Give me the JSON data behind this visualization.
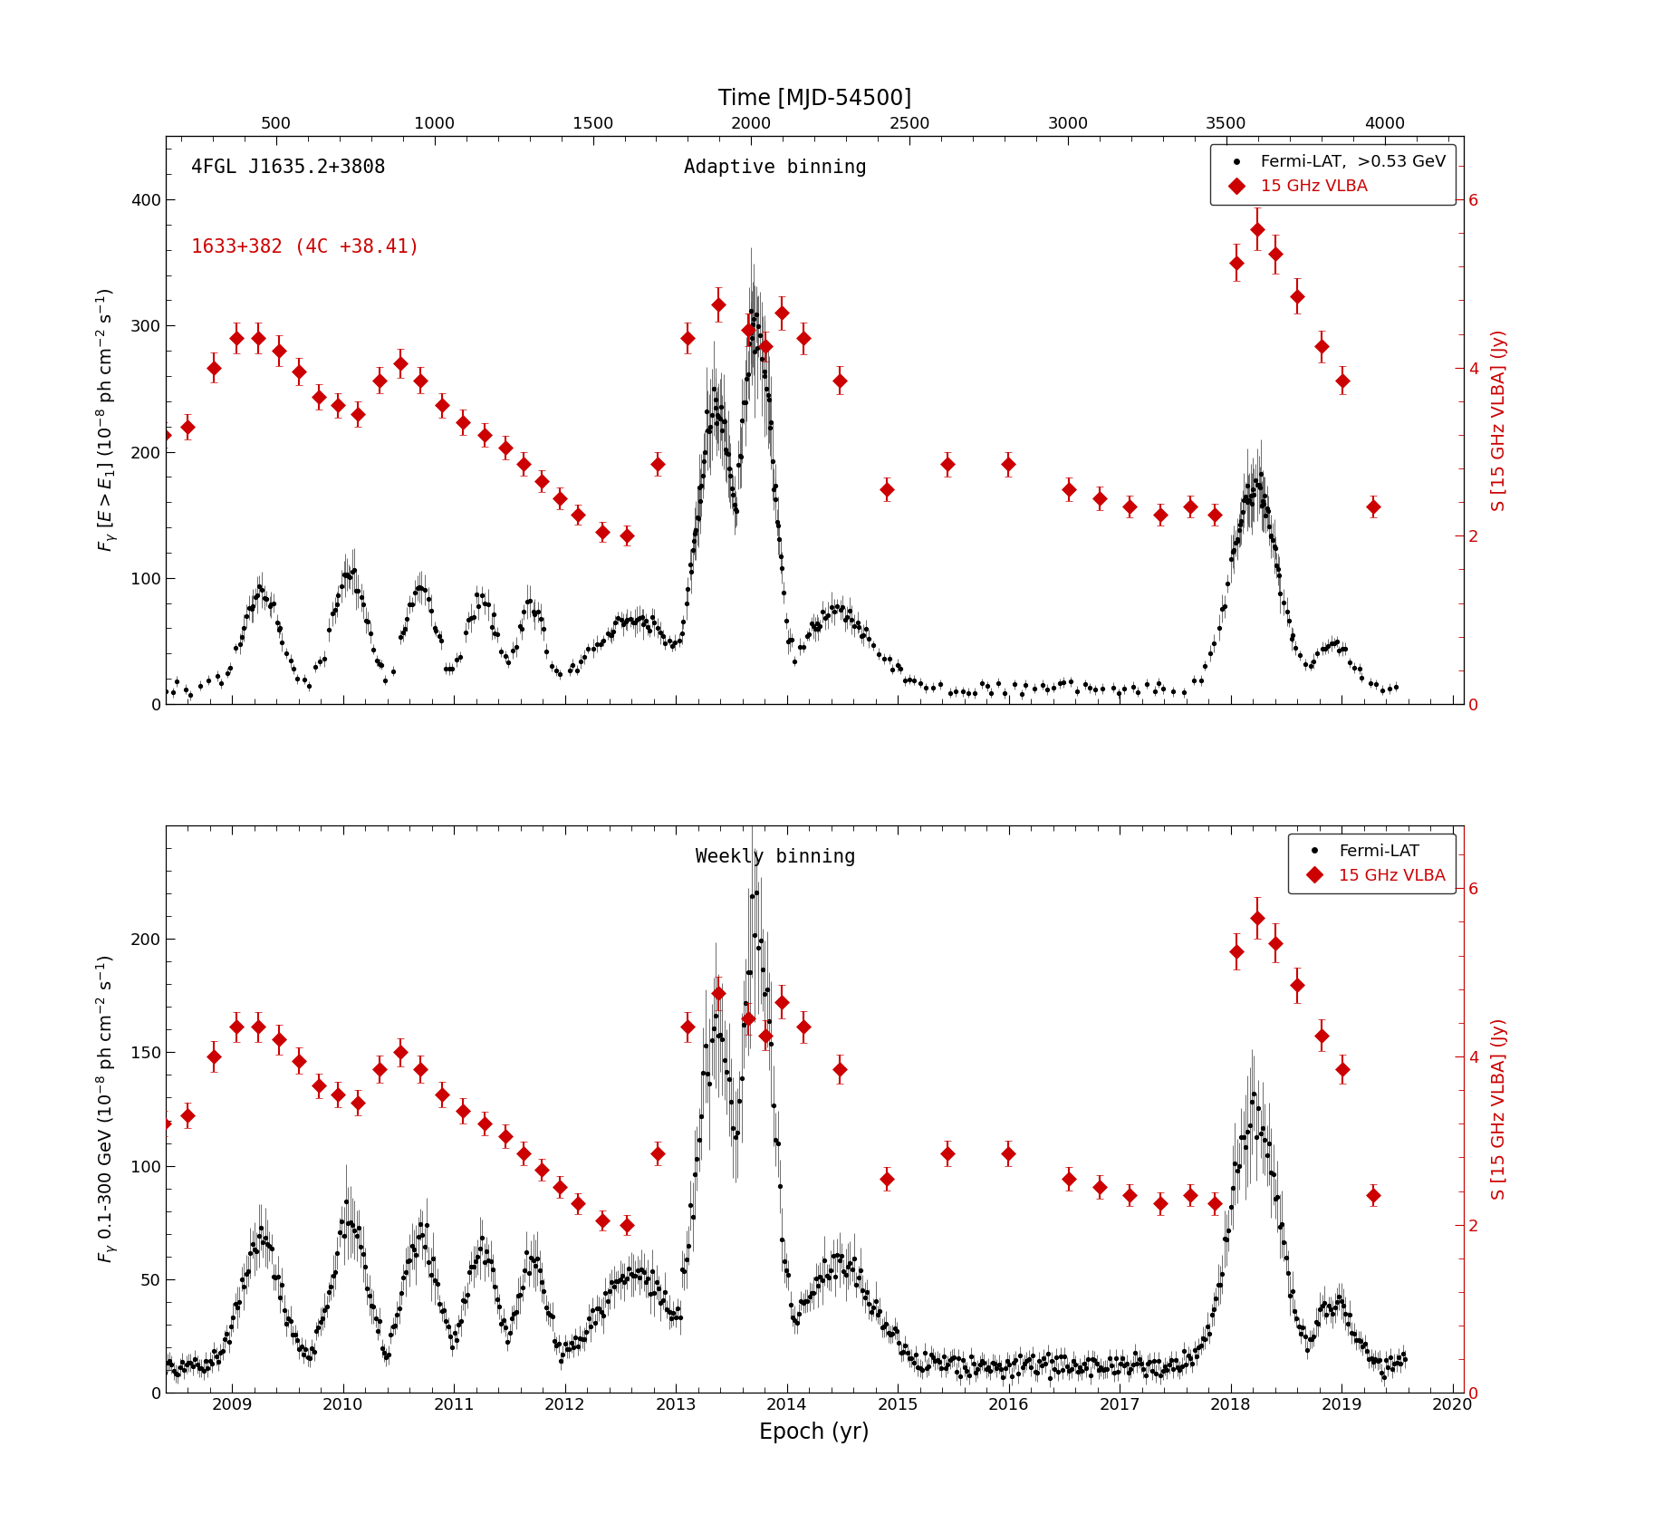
{
  "top_panel": {
    "title_text1": "4FGL J1635.2+3808",
    "title_text2": "1633+382 (4C +38.41)",
    "center_label": "Adaptive binning",
    "legend_entries": [
      "Fermi-LAT,  >0.53 GeV",
      "15 GHz VLBA"
    ],
    "ylabel_left": "$F_{\\gamma}$ $[E>E_1]$ $(10^{-8}$ ph cm$^{-2}$ s$^{-1})$",
    "ylabel_right": "S [15 GHz VLBA] (Jy)",
    "ylim_left": [
      0,
      450
    ],
    "ylim_right": [
      0,
      6.75
    ],
    "yticks_left": [
      0,
      100,
      200,
      300,
      400
    ],
    "yticks_right": [
      0,
      2,
      4,
      6
    ]
  },
  "bottom_panel": {
    "center_label": "Weekly binning",
    "legend_entries": [
      "Fermi-LAT",
      "15 GHz VLBA"
    ],
    "ylabel_left": "$F_{\\gamma}$ 0.1-300 GeV $(10^{-8}$ ph cm$^{-2}$ s$^{-1})$",
    "ylabel_right": "S [15 GHz VLBA] (Jy)",
    "ylim_left": [
      0,
      250
    ],
    "ylim_right": [
      0,
      6.75
    ],
    "yticks_left": [
      0,
      50,
      100,
      150,
      200
    ],
    "yticks_right": [
      0,
      2,
      4,
      6
    ]
  },
  "xaxis": {
    "xlabel": "Epoch (yr)",
    "top_xlabel": "Time [MJD-54500]",
    "xlim_mjd": [
      150,
      4250
    ],
    "xlim_yr": [
      2008.4,
      2020.1
    ],
    "xticks_mjd": [
      500,
      1000,
      1500,
      2000,
      2500,
      3000,
      3500,
      4000
    ],
    "xticks_yr": [
      2009,
      2010,
      2011,
      2012,
      2013,
      2014,
      2015,
      2016,
      2017,
      2018,
      2019,
      2020
    ]
  },
  "colors": {
    "fermi": "#000000",
    "vlba": "#cc0000"
  },
  "vlba_data": {
    "mjd": [
      130,
      210,
      295,
      370,
      440,
      510,
      575,
      640,
      705,
      770,
      840,
      910,
      975,
      1045,
      1115,
      1185,
      1255,
      1315,
      1375,
      1435,
      1495,
      1575,
      1655,
      1755,
      1855,
      1955,
      2055,
      2110,
      2165,
      2235,
      2355,
      2510,
      2710,
      2910,
      3110,
      3210,
      3310,
      3410,
      3510,
      3590,
      3660,
      3730,
      3790,
      3860,
      3940,
      4010,
      4110
    ],
    "flux": [
      3.2,
      3.3,
      4.0,
      4.35,
      4.35,
      4.2,
      3.95,
      3.65,
      3.55,
      3.45,
      3.85,
      4.05,
      3.85,
      3.55,
      3.35,
      3.2,
      3.05,
      2.85,
      2.65,
      2.45,
      2.25,
      2.05,
      2.0,
      2.85,
      4.35,
      4.75,
      4.45,
      4.25,
      4.65,
      4.35,
      3.85,
      2.55,
      2.85,
      2.85,
      2.55,
      2.45,
      2.35,
      2.25,
      2.35,
      2.25,
      5.25,
      5.65,
      5.35,
      4.85,
      4.25,
      3.85,
      2.35
    ],
    "err": [
      0.15,
      0.15,
      0.18,
      0.18,
      0.18,
      0.18,
      0.16,
      0.15,
      0.15,
      0.15,
      0.16,
      0.17,
      0.16,
      0.15,
      0.15,
      0.14,
      0.14,
      0.14,
      0.13,
      0.13,
      0.12,
      0.12,
      0.12,
      0.14,
      0.18,
      0.2,
      0.19,
      0.18,
      0.2,
      0.19,
      0.17,
      0.14,
      0.15,
      0.15,
      0.14,
      0.14,
      0.13,
      0.13,
      0.13,
      0.13,
      0.22,
      0.25,
      0.23,
      0.21,
      0.19,
      0.17,
      0.13
    ]
  }
}
